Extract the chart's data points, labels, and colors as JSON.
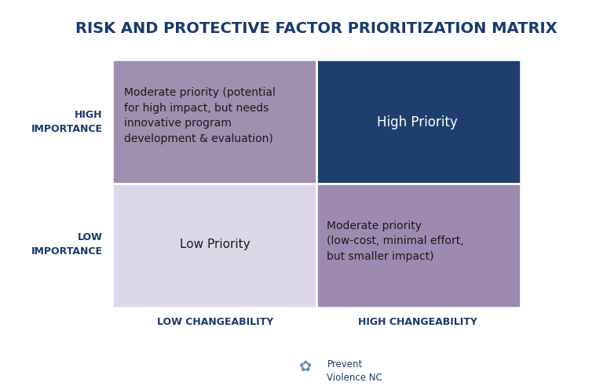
{
  "title": "RISK AND PROTECTIVE FACTOR PRIORITIZATION MATRIX",
  "title_color": "#1a3a6b",
  "title_fontsize": 14,
  "background_color": "#ffffff",
  "border_color": "#2e5fa3",
  "quadrants": {
    "top_left": {
      "color": "#a08faf",
      "text": "Moderate priority (potential\nfor high impact, but needs\ninnovative program\ndevelopment & evaluation)",
      "text_color": "#1a1a1a",
      "fontsize": 10
    },
    "top_right": {
      "color": "#1e3f6e",
      "text": "High Priority",
      "text_color": "#ffffff",
      "fontsize": 12
    },
    "bottom_left": {
      "color": "#ddd8e8",
      "text": "Low Priority",
      "text_color": "#1a1a1a",
      "fontsize": 11
    },
    "bottom_right": {
      "color": "#9e8ab0",
      "text": "Moderate priority\n(low-cost, minimal effort,\nbut smaller impact)",
      "text_color": "#1a1a1a",
      "fontsize": 10
    }
  },
  "y_labels": {
    "high": "HIGH\nIMPORTANCE",
    "low": "LOW\nIMPORTANCE",
    "color": "#1a3a6b",
    "fontsize": 9
  },
  "x_labels": {
    "low": "LOW CHANGEABILITY",
    "high": "HIGH CHANGEABILITY",
    "color": "#1a3a6b",
    "fontsize": 9
  },
  "footer_text": "Prevent\nViolence NC",
  "footer_color": "#1a3a6b"
}
